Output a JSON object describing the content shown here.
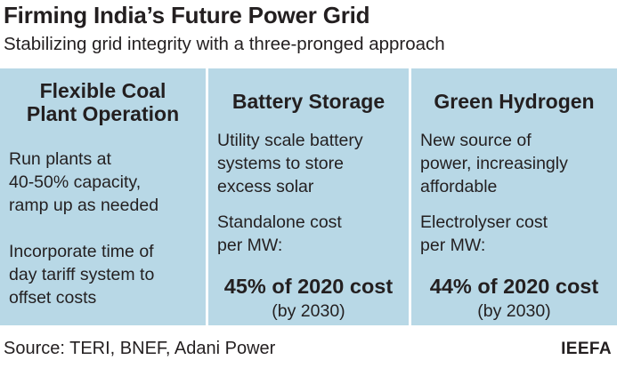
{
  "header": {
    "title": "Firming India’s Future Power Grid",
    "subtitle": "Stabilizing grid integrity with a three-pronged approach"
  },
  "columns": [
    {
      "heading": "Flexible Coal\nPlant Operation",
      "para1": "Run plants at\n40-50% capacity,\nramp up as needed",
      "para2": "Incorporate time of\nday tariff system to\noffset costs"
    },
    {
      "heading": "Battery Storage",
      "para1": "Utility scale battery\nsystems to store\nexcess solar",
      "para2": "Standalone cost\nper MW:",
      "highlight": "45% of 2020 cost",
      "note": "(by 2030)"
    },
    {
      "heading": "Green Hydrogen",
      "para1": "New source of\npower, increasingly\naffordable",
      "para2": "Electrolyser cost\nper MW:",
      "highlight": "44% of 2020 cost",
      "note": "(by 2030)"
    }
  ],
  "footer": {
    "source": "Source: TERI, BNEF, Adani Power",
    "brand": "IEEFA"
  },
  "colors": {
    "panel_background": "#b8d8e6",
    "text": "#231f20"
  }
}
